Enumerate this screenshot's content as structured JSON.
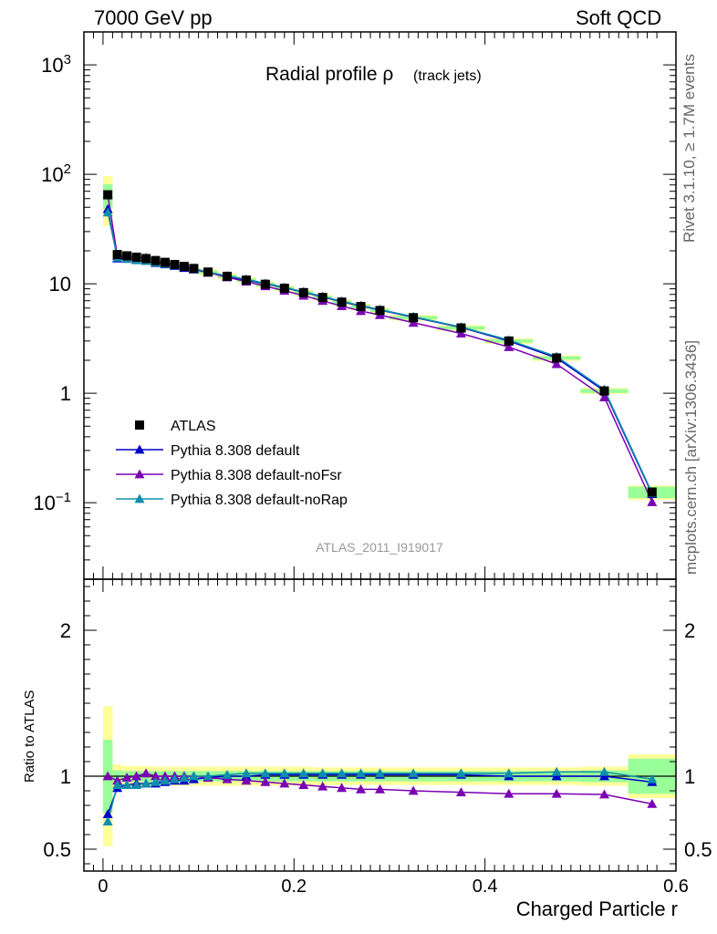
{
  "header": {
    "left": "7000 GeV pp",
    "right": "Soft QCD"
  },
  "side_labels": {
    "rivet": "Rivet 3.1.10, ≥ 1.7M events",
    "mcplots": "mcplots.cern.ch [arXiv:1306.3436]"
  },
  "chart_data": {
    "type": "line",
    "title": "Radial profile ρ",
    "title_suffix": "(track jets)",
    "analysis_tag": "ATLAS_2011_I919017",
    "xlabel": "Charged Particle r",
    "ylabel": "",
    "ratio_ylabel": "Ratio to ATLAS",
    "xlim": [
      -0.02,
      0.6
    ],
    "ylim": [
      0.02,
      2000
    ],
    "yscale": "log",
    "ratio_ylim": [
      0.35,
      2.35
    ],
    "x_ticks": [
      "0",
      "0.2",
      "0.4",
      "0.6"
    ],
    "y_ticks": [
      {
        "value": 0.1,
        "base": "10",
        "exp": "−1"
      },
      {
        "value": 1,
        "base": "1",
        "exp": ""
      },
      {
        "value": 10,
        "base": "10",
        "exp": ""
      },
      {
        "value": 100,
        "base": "10",
        "exp": "2"
      },
      {
        "value": 1000,
        "base": "10",
        "exp": "3"
      }
    ],
    "ratio_ticks": [
      {
        "value": 0.5,
        "label": "0.5"
      },
      {
        "value": 1,
        "label": "1"
      },
      {
        "value": 2,
        "label": "2"
      }
    ],
    "legend_position": "lower-left",
    "x": [
      0.005,
      0.015,
      0.025,
      0.035,
      0.045,
      0.055,
      0.065,
      0.075,
      0.085,
      0.095,
      0.11,
      0.13,
      0.15,
      0.17,
      0.19,
      0.21,
      0.23,
      0.25,
      0.27,
      0.29,
      0.325,
      0.375,
      0.425,
      0.475,
      0.525,
      0.575
    ],
    "data": {
      "name": "ATLAS",
      "values": [
        65,
        18.5,
        18,
        17.5,
        17,
        16.3,
        15.7,
        15,
        14.4,
        13.8,
        12.8,
        11.7,
        10.8,
        9.9,
        9.1,
        8.3,
        7.5,
        6.8,
        6.2,
        5.7,
        4.9,
        3.95,
        3.0,
        2.1,
        1.05,
        0.125
      ],
      "err_inner": [
        0.25,
        0.04,
        0.035,
        0.035,
        0.035,
        0.035,
        0.035,
        0.035,
        0.035,
        0.035,
        0.035,
        0.035,
        0.035,
        0.035,
        0.035,
        0.035,
        0.035,
        0.035,
        0.035,
        0.035,
        0.035,
        0.035,
        0.035,
        0.035,
        0.04,
        0.12
      ],
      "err_outer": [
        0.48,
        0.08,
        0.07,
        0.07,
        0.07,
        0.065,
        0.065,
        0.065,
        0.065,
        0.065,
        0.065,
        0.065,
        0.065,
        0.065,
        0.065,
        0.065,
        0.06,
        0.06,
        0.06,
        0.06,
        0.06,
        0.06,
        0.06,
        0.06,
        0.065,
        0.15
      ]
    },
    "series": [
      {
        "name": "Pythia 8.308 default",
        "color": "#0000cc",
        "ratio": [
          0.74,
          0.92,
          0.94,
          0.95,
          0.95,
          0.95,
          0.96,
          0.97,
          0.97,
          0.98,
          0.99,
          1.0,
          1.0,
          1.01,
          1.01,
          1.01,
          1.01,
          1.01,
          1.01,
          1.01,
          1.01,
          1.01,
          1.0,
          1.0,
          1.0,
          0.96
        ]
      },
      {
        "name": "Pythia 8.308 default-noFsr",
        "color": "#7b00b4",
        "ratio": [
          1.0,
          0.97,
          0.99,
          1.0,
          1.02,
          1.0,
          1.0,
          1.0,
          1.0,
          1.0,
          0.99,
          0.98,
          0.97,
          0.96,
          0.95,
          0.94,
          0.93,
          0.92,
          0.91,
          0.91,
          0.9,
          0.89,
          0.88,
          0.88,
          0.875,
          0.81
        ]
      },
      {
        "name": "Pythia 8.308 default-noRap",
        "color": "#0f8fab",
        "ratio": [
          0.69,
          0.94,
          0.94,
          0.94,
          0.95,
          0.96,
          0.97,
          0.98,
          0.99,
          1.0,
          1.0,
          1.01,
          1.02,
          1.02,
          1.02,
          1.02,
          1.02,
          1.02,
          1.02,
          1.02,
          1.02,
          1.02,
          1.02,
          1.03,
          1.03,
          0.98
        ]
      }
    ]
  }
}
